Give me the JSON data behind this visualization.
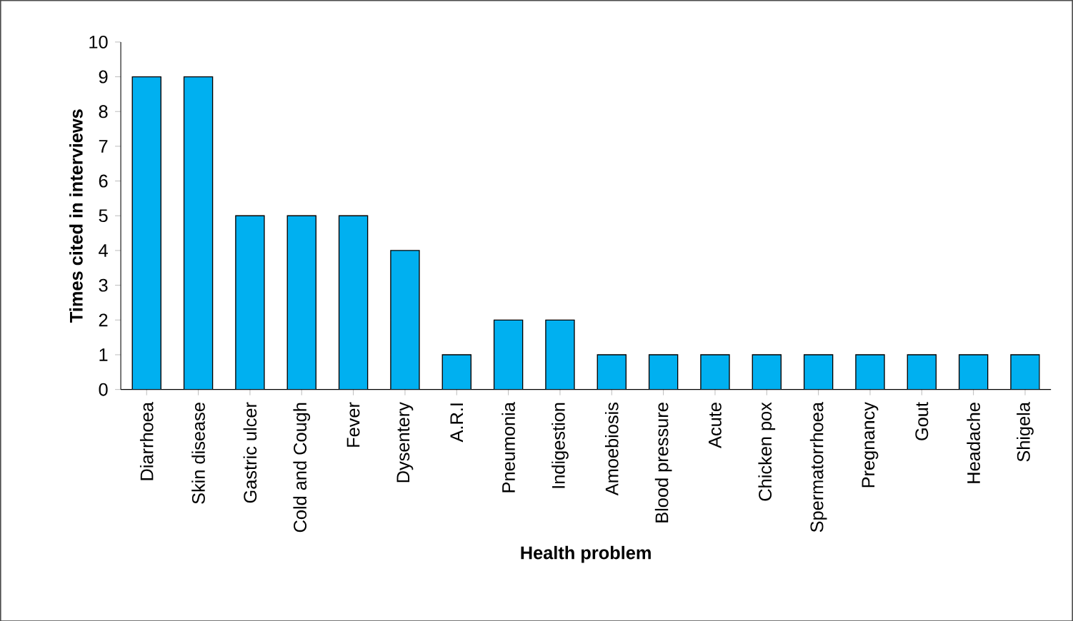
{
  "chart_data": {
    "type": "bar",
    "xlabel": "Health problem",
    "ylabel": "Times cited in interviews",
    "categories": [
      "Diarrhoea",
      "Skin disease",
      "Gastric ulcer",
      "Cold and Cough",
      "Fever",
      "Dysentery",
      "A.R.I",
      "Pneumonia",
      "Indigestion",
      "Amoebiosis",
      "Blood pressure",
      "Acute",
      "Chicken pox",
      "Spermatorrhoea",
      "Pregnancy",
      "Gout",
      "Headache",
      "Shigela"
    ],
    "values": [
      9,
      9,
      5,
      5,
      5,
      4,
      1,
      2,
      2,
      1,
      1,
      1,
      1,
      1,
      1,
      1,
      1,
      1
    ],
    "color": "#00b0f0",
    "ylim": [
      0,
      10
    ],
    "yticks": [
      0,
      1,
      2,
      3,
      4,
      5,
      6,
      7,
      8,
      9,
      10
    ]
  }
}
